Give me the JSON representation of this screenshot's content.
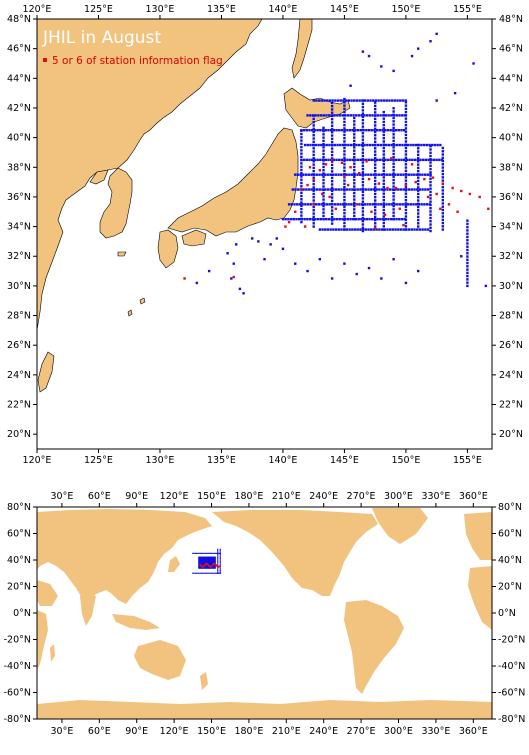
{
  "colors": {
    "land": "#f2c27f",
    "ocean": "#ffffff",
    "blue_points": "#1010e8",
    "red_points": "#e01010"
  },
  "top_map": {
    "title": "JHIL in August",
    "legend_label": "5 or 6 of station information flag",
    "lon_range": [
      120,
      157
    ],
    "lat_range": [
      19,
      48
    ],
    "x_ticks": [
      "120°E",
      "125°E",
      "130°E",
      "135°E",
      "140°E",
      "145°E",
      "150°E",
      "155°E"
    ],
    "y_ticks": [
      "20°N",
      "22°N",
      "24°N",
      "26°N",
      "28°N",
      "30°N",
      "32°N",
      "34°N",
      "36°N",
      "38°N",
      "40°N",
      "42°N",
      "44°N",
      "46°N",
      "48°N"
    ]
  },
  "bottom_map": {
    "lon_range": [
      10,
      375
    ],
    "lat_range": [
      -80,
      80
    ],
    "x_ticks": [
      "30°E",
      "60°E",
      "90°E",
      "120°E",
      "150°E",
      "180°E",
      "210°E",
      "240°E",
      "270°E",
      "300°E",
      "330°E",
      "360°E"
    ],
    "y_ticks": [
      "-80°N",
      "-60°N",
      "-40°N",
      "-20°N",
      "0°N",
      "20°N",
      "40°N",
      "60°N",
      "80°N"
    ]
  }
}
